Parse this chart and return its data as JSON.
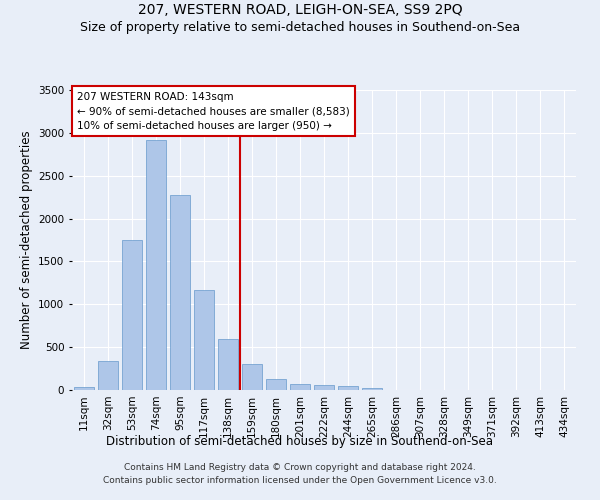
{
  "title": "207, WESTERN ROAD, LEIGH-ON-SEA, SS9 2PQ",
  "subtitle": "Size of property relative to semi-detached houses in Southend-on-Sea",
  "xlabel": "Distribution of semi-detached houses by size in Southend-on-Sea",
  "ylabel": "Number of semi-detached properties",
  "categories": [
    "11sqm",
    "32sqm",
    "53sqm",
    "74sqm",
    "95sqm",
    "117sqm",
    "138sqm",
    "159sqm",
    "180sqm",
    "201sqm",
    "222sqm",
    "244sqm",
    "265sqm",
    "286sqm",
    "307sqm",
    "328sqm",
    "349sqm",
    "371sqm",
    "392sqm",
    "413sqm",
    "434sqm"
  ],
  "values": [
    30,
    340,
    1750,
    2920,
    2280,
    1170,
    600,
    300,
    130,
    70,
    55,
    50,
    20,
    0,
    0,
    0,
    0,
    0,
    0,
    0,
    0
  ],
  "bar_color": "#aec6e8",
  "bar_edge_color": "#6699cc",
  "bar_width": 0.85,
  "vline_x": 6.5,
  "vline_color": "#cc0000",
  "annotation_text": "207 WESTERN ROAD: 143sqm\n← 90% of semi-detached houses are smaller (8,583)\n10% of semi-detached houses are larger (950) →",
  "annotation_box_color": "#ffffff",
  "annotation_edge_color": "#cc0000",
  "ylim": [
    0,
    3500
  ],
  "yticks": [
    0,
    500,
    1000,
    1500,
    2000,
    2500,
    3000,
    3500
  ],
  "background_color": "#e8eef8",
  "fig_background_color": "#e8eef8",
  "footer": "Contains HM Land Registry data © Crown copyright and database right 2024.\nContains public sector information licensed under the Open Government Licence v3.0.",
  "title_fontsize": 10,
  "subtitle_fontsize": 9,
  "xlabel_fontsize": 8.5,
  "ylabel_fontsize": 8.5,
  "tick_fontsize": 7.5,
  "footer_fontsize": 6.5,
  "annotation_fontsize": 7.5
}
